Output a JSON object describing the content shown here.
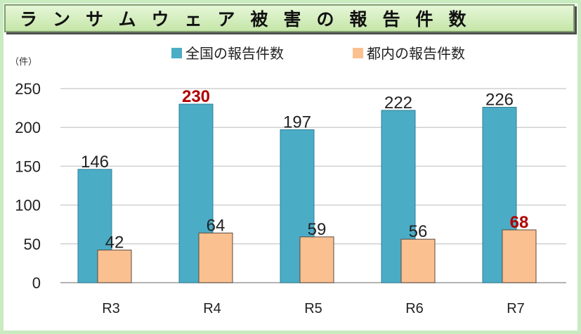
{
  "title": "ランサムウェア被害の報告件数",
  "chart_data": {
    "type": "bar",
    "unit_label": "（件）",
    "categories": [
      "R3",
      "R4",
      "R5",
      "R6",
      "R7"
    ],
    "series": [
      {
        "name": "全国の報告件数",
        "color": "#4bacc6",
        "values": [
          146,
          230,
          197,
          222,
          226
        ],
        "highlight": [
          false,
          true,
          false,
          false,
          false
        ]
      },
      {
        "name": "都内の報告件数",
        "color": "#fac090",
        "values": [
          42,
          64,
          59,
          56,
          68
        ],
        "highlight": [
          false,
          false,
          false,
          false,
          true
        ]
      }
    ],
    "yticks": [
      0,
      50,
      100,
      150,
      200,
      250
    ],
    "ylim": [
      0,
      250
    ],
    "grid": true,
    "legend": "top"
  }
}
